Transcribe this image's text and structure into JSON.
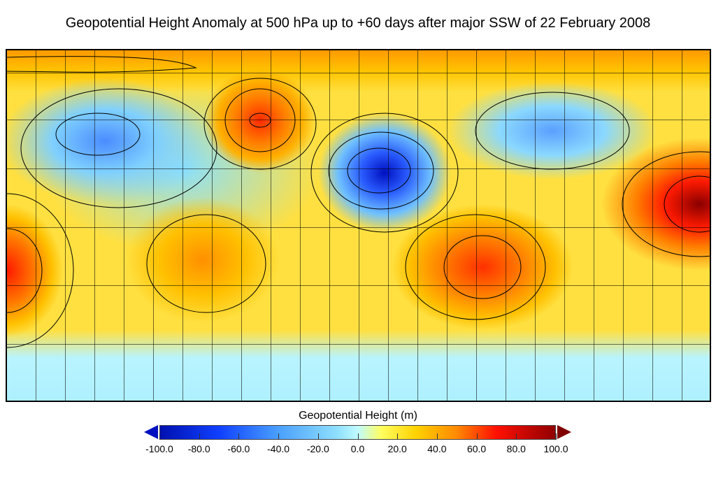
{
  "title": "Geopotential Height Anomaly at 500 hPa up to +60 days after major SSW of 22 February 2008",
  "colorbar": {
    "label": "Geopotential Height (m)",
    "ticks": [
      "-100.0",
      "-80.0",
      "-60.0",
      "-40.0",
      "-20.0",
      "0.0",
      "20.0",
      "40.0",
      "60.0",
      "80.0",
      "100.0"
    ],
    "range": [
      -100,
      100
    ],
    "colors": [
      "#0010b0",
      "#4aa0ff",
      "#c0faff",
      "#ffff60",
      "#ff8a00",
      "#ff1000",
      "#900000"
    ]
  }
}
